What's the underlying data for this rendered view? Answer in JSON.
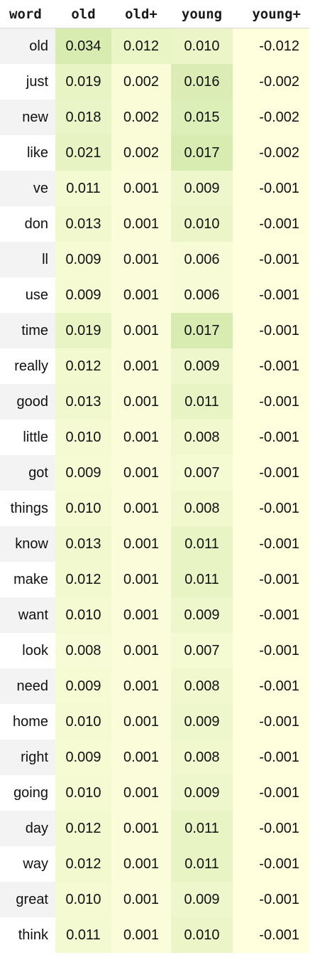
{
  "headers": [
    "word",
    "old",
    "old+",
    "young",
    "young+"
  ],
  "rows": [
    {
      "word": "old",
      "values": [
        "0.034",
        "0.012",
        "0.010",
        "-0.012"
      ]
    },
    {
      "word": "just",
      "values": [
        "0.019",
        "0.002",
        "0.016",
        "-0.002"
      ]
    },
    {
      "word": "new",
      "values": [
        "0.018",
        "0.002",
        "0.015",
        "-0.002"
      ]
    },
    {
      "word": "like",
      "values": [
        "0.021",
        "0.002",
        "0.017",
        "-0.002"
      ]
    },
    {
      "word": "ve",
      "values": [
        "0.011",
        "0.001",
        "0.009",
        "-0.001"
      ]
    },
    {
      "word": "don",
      "values": [
        "0.013",
        "0.001",
        "0.010",
        "-0.001"
      ]
    },
    {
      "word": "ll",
      "values": [
        "0.009",
        "0.001",
        "0.006",
        "-0.001"
      ]
    },
    {
      "word": "use",
      "values": [
        "0.009",
        "0.001",
        "0.006",
        "-0.001"
      ]
    },
    {
      "word": "time",
      "values": [
        "0.019",
        "0.001",
        "0.017",
        "-0.001"
      ]
    },
    {
      "word": "really",
      "values": [
        "0.012",
        "0.001",
        "0.009",
        "-0.001"
      ]
    },
    {
      "word": "good",
      "values": [
        "0.013",
        "0.001",
        "0.011",
        "-0.001"
      ]
    },
    {
      "word": "little",
      "values": [
        "0.010",
        "0.001",
        "0.008",
        "-0.001"
      ]
    },
    {
      "word": "got",
      "values": [
        "0.009",
        "0.001",
        "0.007",
        "-0.001"
      ]
    },
    {
      "word": "things",
      "values": [
        "0.010",
        "0.001",
        "0.008",
        "-0.001"
      ]
    },
    {
      "word": "know",
      "values": [
        "0.013",
        "0.001",
        "0.011",
        "-0.001"
      ]
    },
    {
      "word": "make",
      "values": [
        "0.012",
        "0.001",
        "0.011",
        "-0.001"
      ]
    },
    {
      "word": "want",
      "values": [
        "0.010",
        "0.001",
        "0.009",
        "-0.001"
      ]
    },
    {
      "word": "look",
      "values": [
        "0.008",
        "0.001",
        "0.007",
        "-0.001"
      ]
    },
    {
      "word": "need",
      "values": [
        "0.009",
        "0.001",
        "0.008",
        "-0.001"
      ]
    },
    {
      "word": "home",
      "values": [
        "0.010",
        "0.001",
        "0.009",
        "-0.001"
      ]
    },
    {
      "word": "right",
      "values": [
        "0.009",
        "0.001",
        "0.008",
        "-0.001"
      ]
    },
    {
      "word": "going",
      "values": [
        "0.010",
        "0.001",
        "0.009",
        "-0.001"
      ]
    },
    {
      "word": "day",
      "values": [
        "0.012",
        "0.001",
        "0.011",
        "-0.001"
      ]
    },
    {
      "word": "way",
      "values": [
        "0.012",
        "0.001",
        "0.011",
        "-0.001"
      ]
    },
    {
      "word": "great",
      "values": [
        "0.010",
        "0.001",
        "0.009",
        "-0.001"
      ]
    },
    {
      "word": "think",
      "values": [
        "0.011",
        "0.001",
        "0.010",
        "-0.001"
      ]
    }
  ],
  "colorscale": {
    "low": "#ffffde",
    "high": "#d8ecb2"
  }
}
